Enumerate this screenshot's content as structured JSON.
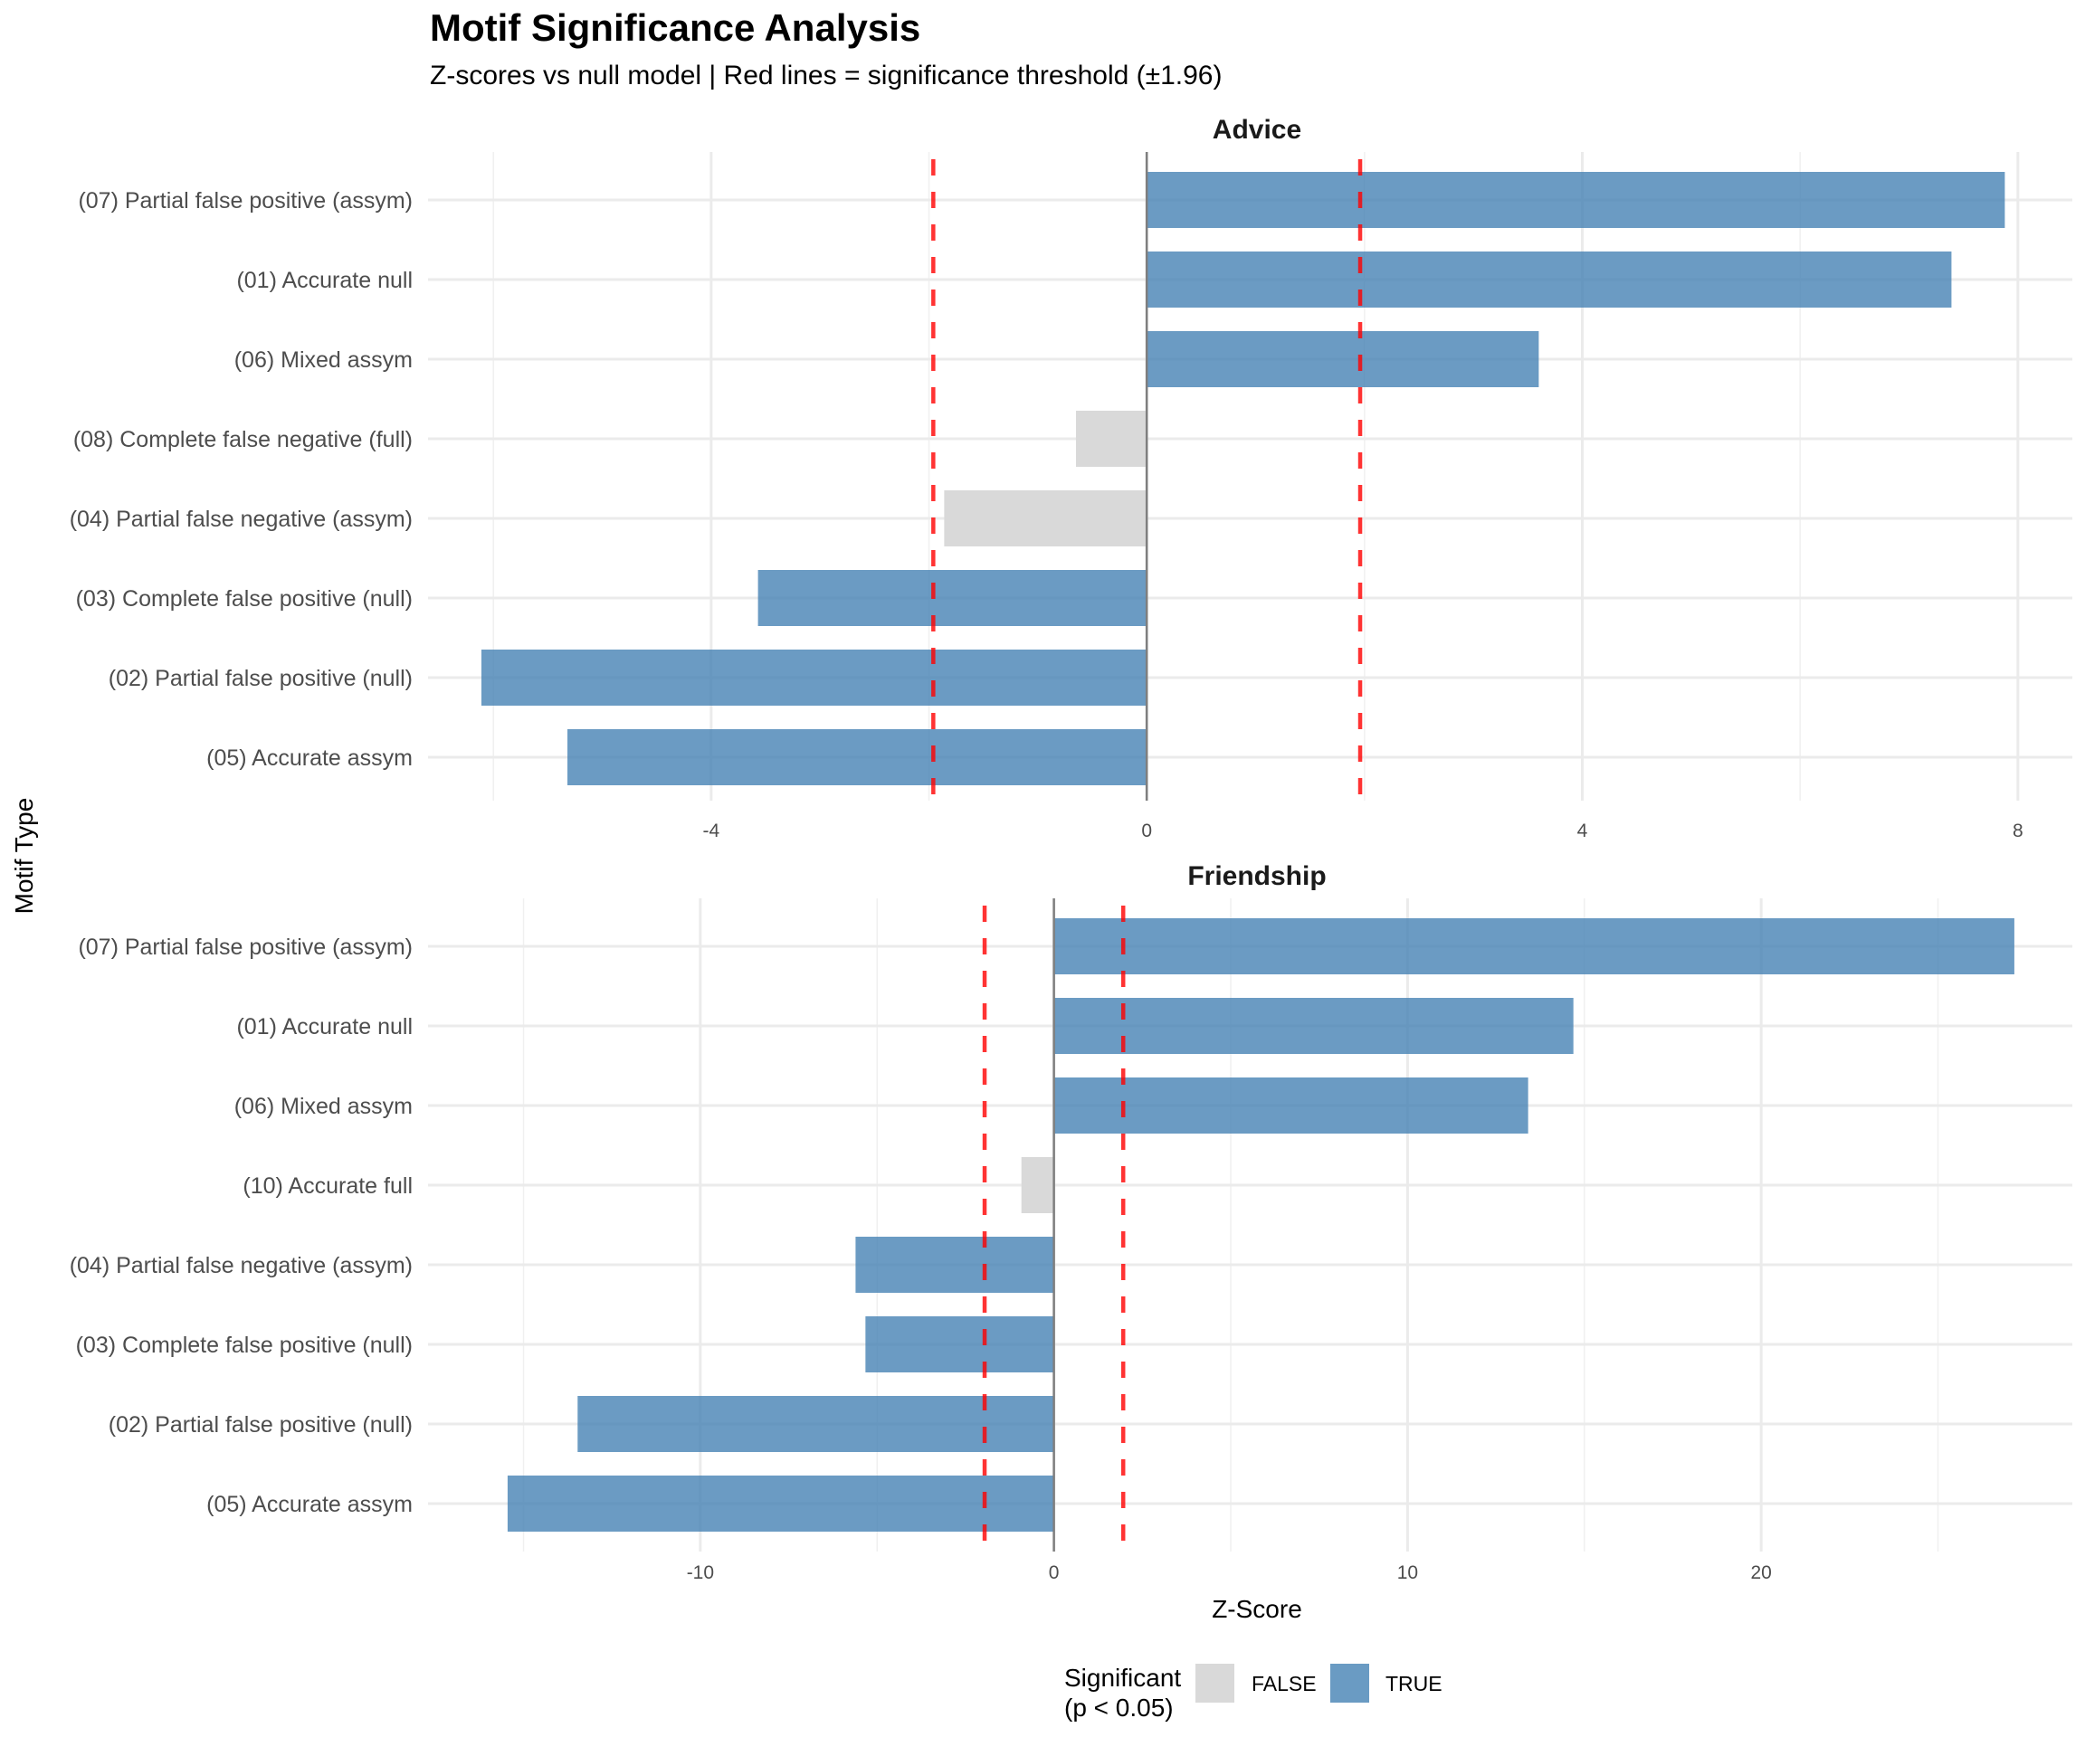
{
  "chart_data": {
    "type": "bar",
    "orientation": "horizontal",
    "title": "Motif Significance Analysis",
    "subtitle": "Z-scores vs null model | Red lines = significance threshold (±1.96)",
    "xlabel": "Z-Score",
    "ylabel": "Motif Type",
    "threshold": 1.96,
    "grid": true,
    "legend": {
      "title": "Significant\n(p < 0.05)",
      "title_lines": [
        "Significant",
        "(p < 0.05)"
      ],
      "position": "bottom",
      "entries": [
        {
          "label": "FALSE",
          "color": "#d9d9d9"
        },
        {
          "label": "TRUE",
          "color": "#4682b4"
        }
      ]
    },
    "colors": {
      "TRUE": "#4682b4",
      "FALSE": "#d9d9d9",
      "threshold": "#ff0000",
      "zero_line": "#7f7f7f"
    },
    "panels": [
      {
        "name": "Advice",
        "xlim": [
          -6.6,
          8.5
        ],
        "x_ticks": [
          -4,
          0,
          4,
          8
        ],
        "x_tick_labels": [
          "-4",
          "0",
          "4",
          "8"
        ],
        "x_minor": [
          -6,
          -2,
          2,
          6
        ],
        "categories": [
          "(07) Partial false positive (assym)",
          "(01) Accurate null",
          "(06) Mixed assym",
          "(08) Complete false negative (full)",
          "(04) Partial false negative (assym)",
          "(03) Complete false positive (null)",
          "(02) Partial false positive (null)",
          "(05) Accurate assym"
        ],
        "values": [
          7.88,
          7.39,
          3.6,
          -0.65,
          -1.86,
          -3.57,
          -6.11,
          -5.32
        ],
        "significant": [
          true,
          true,
          true,
          false,
          false,
          true,
          true,
          true
        ]
      },
      {
        "name": "Friendship",
        "xlim": [
          -17.7,
          28.8
        ],
        "x_ticks": [
          -10,
          0,
          10,
          20
        ],
        "x_tick_labels": [
          "-10",
          "0",
          "10",
          "20"
        ],
        "x_minor": [
          -15,
          -5,
          5,
          15,
          25
        ],
        "categories": [
          "(07) Partial false positive (assym)",
          "(01) Accurate null",
          "(06) Mixed assym",
          "(10) Accurate full",
          "(04) Partial false negative (assym)",
          "(03) Complete false positive (null)",
          "(02) Partial false positive (null)",
          "(05) Accurate assym"
        ],
        "values": [
          27.16,
          14.69,
          13.41,
          -0.92,
          -5.61,
          -5.33,
          -13.47,
          -15.45
        ],
        "significant": [
          true,
          true,
          true,
          false,
          true,
          true,
          true,
          true
        ]
      }
    ]
  }
}
